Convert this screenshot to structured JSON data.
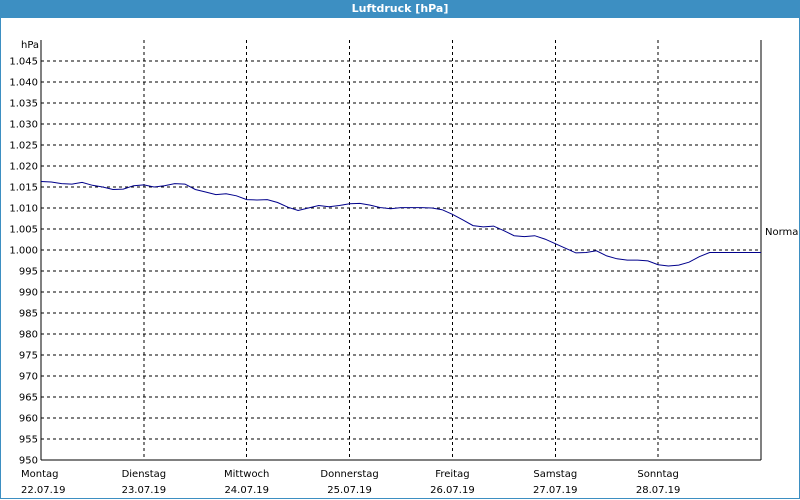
{
  "window": {
    "title": "Luftdruck [hPa]"
  },
  "chart_data": {
    "type": "line",
    "title": "Luftdruck [hPa]",
    "ylabel": "hPa",
    "xlabel": "",
    "ylim": [
      950,
      1050
    ],
    "y_ticks": [
      {
        "value": 950,
        "label": "950"
      },
      {
        "value": 955,
        "label": "955"
      },
      {
        "value": 960,
        "label": "960"
      },
      {
        "value": 965,
        "label": "965"
      },
      {
        "value": 970,
        "label": "970"
      },
      {
        "value": 975,
        "label": "975"
      },
      {
        "value": 980,
        "label": "980"
      },
      {
        "value": 985,
        "label": "985"
      },
      {
        "value": 990,
        "label": "990"
      },
      {
        "value": 995,
        "label": "995"
      },
      {
        "value": 1000,
        "label": "1.000"
      },
      {
        "value": 1005,
        "label": "1.005"
      },
      {
        "value": 1010,
        "label": "1.010"
      },
      {
        "value": 1015,
        "label": "1.015"
      },
      {
        "value": 1020,
        "label": "1.020"
      },
      {
        "value": 1025,
        "label": "1.025"
      },
      {
        "value": 1030,
        "label": "1.030"
      },
      {
        "value": 1035,
        "label": "1.035"
      },
      {
        "value": 1040,
        "label": "1.040"
      },
      {
        "value": 1045,
        "label": "1.045"
      }
    ],
    "xlim": [
      0,
      7
    ],
    "x_ticks": [
      {
        "value": 0,
        "day": "Montag",
        "date": "22.07.19"
      },
      {
        "value": 1,
        "day": "Dienstag",
        "date": "23.07.19"
      },
      {
        "value": 2,
        "day": "Mittwoch",
        "date": "24.07.19"
      },
      {
        "value": 3,
        "day": "Donnerstag",
        "date": "25.07.19"
      },
      {
        "value": 4,
        "day": "Freitag",
        "date": "26.07.19"
      },
      {
        "value": 5,
        "day": "Samstag",
        "date": "27.07.19"
      },
      {
        "value": 6,
        "day": "Sonntag",
        "date": "28.07.19"
      }
    ],
    "grid": true,
    "grid_style": "dashed",
    "reference_line": {
      "label": "Normal",
      "value": 1004.5
    },
    "series": [
      {
        "name": "",
        "color": "#00008b",
        "x": [
          0,
          0.1,
          0.2,
          0.3,
          0.4,
          0.5,
          0.6,
          0.7,
          0.8,
          0.9,
          1.0,
          1.1,
          1.2,
          1.3,
          1.4,
          1.5,
          1.6,
          1.7,
          1.8,
          1.9,
          2.0,
          2.1,
          2.2,
          2.3,
          2.4,
          2.5,
          2.6,
          2.7,
          2.8,
          2.9,
          3.0,
          3.1,
          3.2,
          3.3,
          3.4,
          3.5,
          3.6,
          3.7,
          3.8,
          3.9,
          4.0,
          4.1,
          4.2,
          4.3,
          4.4,
          4.5,
          4.6,
          4.7,
          4.8,
          4.9,
          5.0,
          5.1,
          5.2,
          5.3,
          5.4,
          5.5,
          5.6,
          5.7,
          5.8,
          5.9,
          6.0,
          6.1,
          6.2,
          6.3,
          6.4,
          6.5,
          6.6,
          6.7,
          6.8,
          6.9,
          7.0
        ],
        "y": [
          1016.3,
          1016.2,
          1015.8,
          1015.7,
          1016.1,
          1015.4,
          1015.0,
          1014.4,
          1014.5,
          1015.3,
          1015.5,
          1015.0,
          1015.3,
          1015.8,
          1015.7,
          1014.4,
          1013.8,
          1013.2,
          1013.4,
          1012.9,
          1012.0,
          1011.9,
          1012.0,
          1011.3,
          1010.2,
          1009.4,
          1010.0,
          1010.6,
          1010.3,
          1010.6,
          1011.0,
          1011.1,
          1010.7,
          1010.1,
          1009.8,
          1010.1,
          1010.1,
          1010.1,
          1010.0,
          1009.6,
          1008.5,
          1007.2,
          1005.8,
          1005.5,
          1005.7,
          1004.6,
          1003.4,
          1003.2,
          1003.4,
          1002.6,
          1001.5,
          1000.4,
          999.3,
          999.4,
          999.8,
          998.6,
          997.9,
          997.6,
          997.6,
          997.4,
          996.5,
          996.2,
          996.4,
          997.1,
          998.4,
          999.4,
          999.4,
          999.4,
          999.4,
          999.4,
          999.4
        ]
      }
    ]
  }
}
